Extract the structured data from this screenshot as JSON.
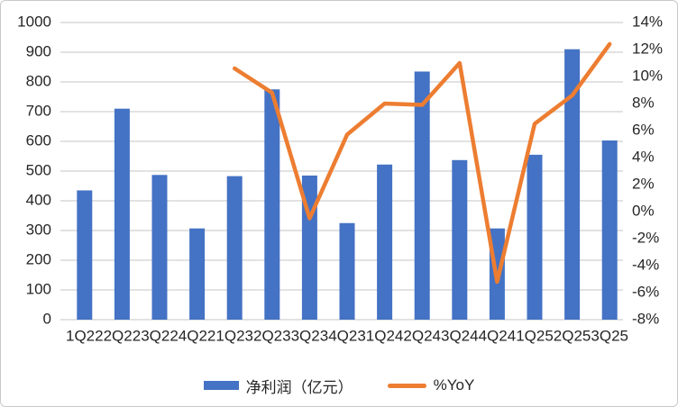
{
  "chart_data": {
    "type": "combo",
    "categories": [
      "1Q22",
      "2Q22",
      "3Q22",
      "4Q22",
      "1Q23",
      "2Q23",
      "3Q23",
      "4Q23",
      "1Q24",
      "2Q24",
      "3Q24",
      "4Q24",
      "1Q25",
      "2Q25",
      "3Q25"
    ],
    "series": [
      {
        "name": "净利润（亿元）",
        "type": "bar",
        "axis": "left",
        "color": "#4472C4",
        "values": [
          435,
          710,
          487,
          307,
          483,
          775,
          485,
          325,
          522,
          835,
          537,
          307,
          555,
          910,
          603
        ]
      },
      {
        "name": "%YoY",
        "type": "line",
        "axis": "right",
        "color": "#ED7D31",
        "values": [
          null,
          null,
          null,
          null,
          10.6,
          8.8,
          -0.5,
          5.7,
          8.0,
          7.9,
          11.0,
          -5.2,
          6.5,
          8.6,
          12.4
        ]
      }
    ],
    "left_axis": {
      "min": 0,
      "max": 1000,
      "step": 100,
      "tick_labels": [
        "1000",
        "900",
        "800",
        "700",
        "600",
        "500",
        "400",
        "300",
        "200",
        "100",
        "0"
      ]
    },
    "right_axis": {
      "min": -8,
      "max": 14,
      "step": 2,
      "tick_labels": [
        "14%",
        "12%",
        "10%",
        "8%",
        "6%",
        "4%",
        "2%",
        "0%",
        "-2%",
        "-4%",
        "-6%",
        "-8%"
      ]
    },
    "grid": true,
    "legend_position": "bottom",
    "title": "",
    "xlabel": "",
    "ylabel": ""
  },
  "colors": {
    "bar": "#4472C4",
    "line": "#ED7D31",
    "grid": "#D9D9D9",
    "axis_text": "#262626",
    "border": "#C9C9C9",
    "background": "#FFFFFF"
  }
}
